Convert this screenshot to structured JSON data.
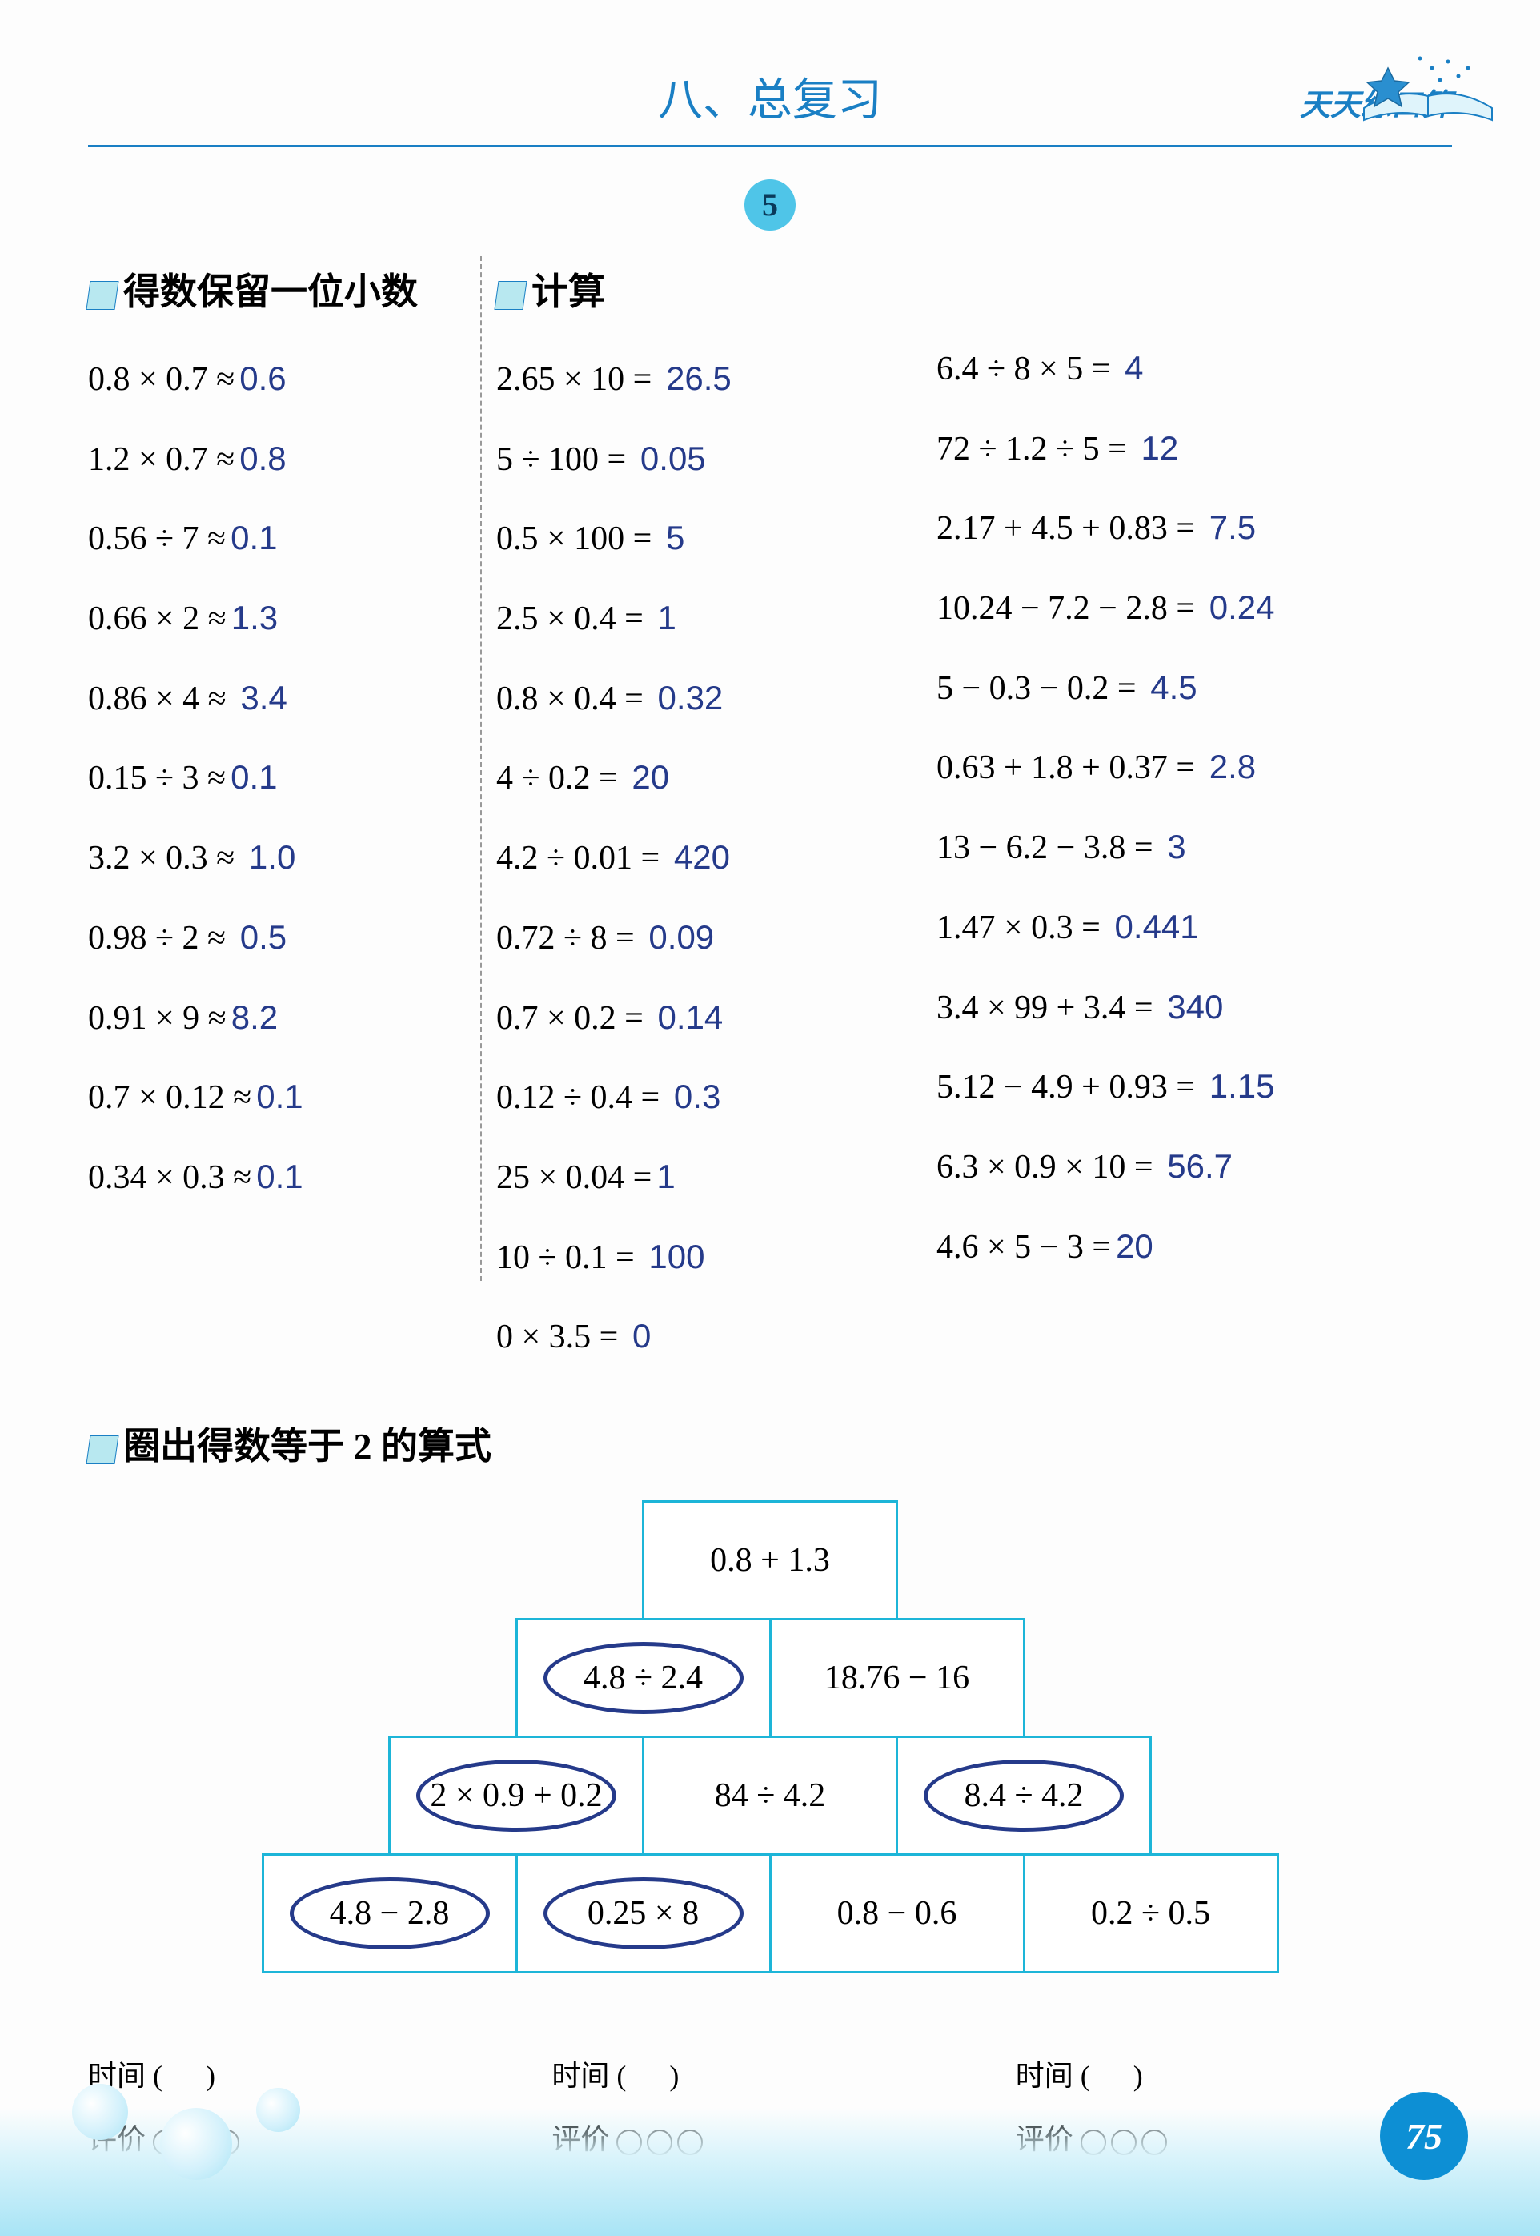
{
  "header": {
    "chapter_title": "八、总复习",
    "brand": "天天练口算",
    "lesson_number": "5"
  },
  "sections": {
    "s1_title": "得数保留一位小数",
    "s2_title": "计算",
    "s3_title": "圈出得数等于 2 的算式"
  },
  "col1": [
    {
      "q": "0.8 × 0.7 ≈",
      "a": "0.6"
    },
    {
      "q": "1.2 × 0.7 ≈",
      "a": "0.8"
    },
    {
      "q": "0.56 ÷ 7 ≈",
      "a": "0.1"
    },
    {
      "q": "0.66 × 2 ≈",
      "a": "1.3"
    },
    {
      "q": "0.86 × 4 ≈",
      "a": " 3.4"
    },
    {
      "q": "0.15 ÷ 3 ≈",
      "a": "0.1"
    },
    {
      "q": "3.2 × 0.3 ≈",
      "a": " 1.0"
    },
    {
      "q": "0.98 ÷ 2 ≈",
      "a": " 0.5"
    },
    {
      "q": "0.91 × 9 ≈",
      "a": "8.2"
    },
    {
      "q": "0.7 × 0.12 ≈",
      "a": "0.1"
    },
    {
      "q": "0.34 × 0.3 ≈",
      "a": "0.1"
    }
  ],
  "col2": [
    {
      "q": "2.65 × 10 =",
      "a": " 26.5"
    },
    {
      "q": "5 ÷ 100 =",
      "a": " 0.05"
    },
    {
      "q": "0.5 × 100 =",
      "a": " 5"
    },
    {
      "q": "2.5 × 0.4 =",
      "a": " 1"
    },
    {
      "q": "0.8 × 0.4 =",
      "a": " 0.32"
    },
    {
      "q": "4 ÷ 0.2 =",
      "a": " 20"
    },
    {
      "q": "4.2 ÷ 0.01 =",
      "a": " 420"
    },
    {
      "q": "0.72 ÷ 8 =",
      "a": " 0.09"
    },
    {
      "q": "0.7 × 0.2 =",
      "a": " 0.14"
    },
    {
      "q": "0.12 ÷ 0.4 =",
      "a": " 0.3"
    },
    {
      "q": "25 × 0.04 =",
      "a": "1"
    },
    {
      "q": "10 ÷ 0.1 =",
      "a": " 100"
    },
    {
      "q": "0 × 3.5 =",
      "a": " 0"
    }
  ],
  "col3": [
    {
      "q": "6.4 ÷ 8 × 5 =",
      "a": " 4"
    },
    {
      "q": "72 ÷ 1.2 ÷ 5 =",
      "a": " 12"
    },
    {
      "q": "2.17 + 4.5 + 0.83 =",
      "a": " 7.5"
    },
    {
      "q": "10.24 − 7.2 − 2.8 =",
      "a": " 0.24"
    },
    {
      "q": "5 − 0.3 − 0.2 =",
      "a": " 4.5"
    },
    {
      "q": "0.63 + 1.8 + 0.37 =",
      "a": " 2.8"
    },
    {
      "q": "13 − 6.2 − 3.8 =",
      "a": " 3"
    },
    {
      "q": "1.47 × 0.3 =",
      "a": " 0.441"
    },
    {
      "q": "3.4 × 99 + 3.4 =",
      "a": " 340"
    },
    {
      "q": "5.12 − 4.9 + 0.93 =",
      "a": " 1.15"
    },
    {
      "q": "6.3 × 0.9 × 10 =",
      "a": " 56.7"
    },
    {
      "q": "4.6 × 5 − 3 =",
      "a": "20"
    }
  ],
  "pyramid": [
    [
      {
        "t": "0.8 + 1.3",
        "c": false
      }
    ],
    [
      {
        "t": "4.8 ÷ 2.4",
        "c": true
      },
      {
        "t": "18.76 − 16",
        "c": false
      }
    ],
    [
      {
        "t": "2 × 0.9 + 0.2",
        "c": true
      },
      {
        "t": "84 ÷ 4.2",
        "c": false
      },
      {
        "t": "8.4 ÷ 4.2",
        "c": true
      }
    ],
    [
      {
        "t": "4.8 − 2.8",
        "c": true
      },
      {
        "t": "0.25 × 8",
        "c": true
      },
      {
        "t": "0.8 − 0.6",
        "c": false
      },
      {
        "t": "0.2 ÷ 0.5",
        "c": false
      }
    ]
  ],
  "footer": {
    "time_label": "时间 (",
    "time_close": ")",
    "rating_label": "评价"
  },
  "page_number": "75",
  "colors": {
    "primary_blue": "#1a7fc4",
    "badge_blue": "#4fc5e8",
    "cell_border": "#1db5d8",
    "answer_blue": "#253a8a",
    "page_badge": "#0d8fd4"
  }
}
